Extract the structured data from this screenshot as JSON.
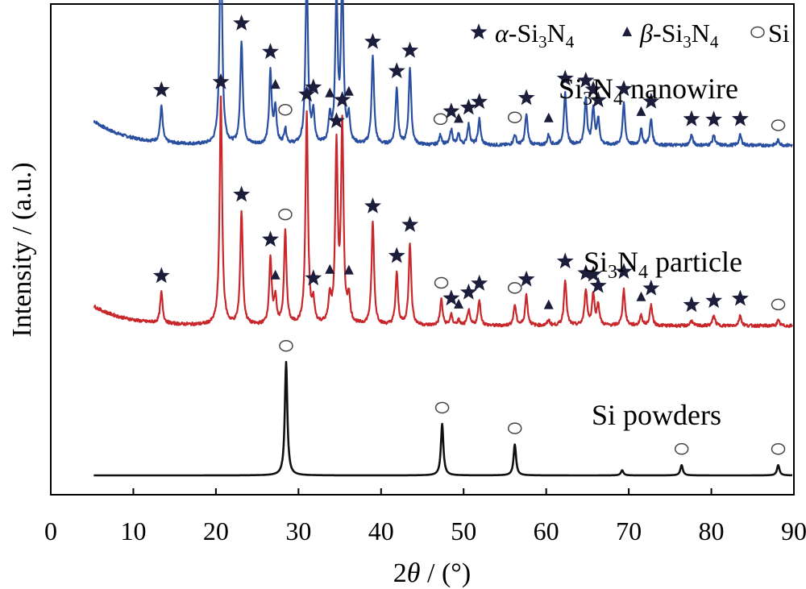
{
  "chart_data": {
    "type": "line",
    "xlabel_prefix": "2",
    "xlabel_theta": "θ",
    "xlabel_suffix": " / (°)",
    "ylabel": "Intensity / (a.u.)",
    "xlim": [
      0,
      90
    ],
    "x_ticks": [
      0,
      10,
      20,
      30,
      40,
      50,
      60,
      70,
      80,
      90
    ],
    "grid": false,
    "legend_placement": "top-right",
    "legend": [
      {
        "marker": "star",
        "greek": "α",
        "text": "-Si",
        "sub1": "3",
        "mid": "N",
        "sub2": "4"
      },
      {
        "marker": "triangle",
        "greek": "β",
        "text": "-Si",
        "sub1": "3",
        "mid": "N",
        "sub2": "4"
      },
      {
        "marker": "circle",
        "greek": "",
        "text": "Si",
        "sub1": "",
        "mid": "",
        "sub2": ""
      }
    ],
    "series": [
      {
        "name_parts": [
          "Si",
          "3",
          "N",
          "4",
          " nanowire"
        ],
        "color": "#2a4fa0",
        "offset": 0.64,
        "baseline": 0.05,
        "peaks": [
          {
            "x": 13.4,
            "h": 0.07,
            "m": "star"
          },
          {
            "x": 20.6,
            "h": 0.44,
            "m": "star"
          },
          {
            "x": 23.1,
            "h": 0.2,
            "m": "star"
          },
          {
            "x": 26.6,
            "h": 0.14,
            "m": "star"
          },
          {
            "x": 27.2,
            "h": 0.07,
            "m": "triangle"
          },
          {
            "x": 28.4,
            "h": 0.03,
            "m": "circle"
          },
          {
            "x": 31.0,
            "h": 0.34,
            "m": "star"
          },
          {
            "x": 31.8,
            "h": 0.06,
            "m": "star"
          },
          {
            "x": 33.8,
            "h": 0.05,
            "m": "triangle"
          },
          {
            "x": 34.6,
            "h": 0.28,
            "m": "star"
          },
          {
            "x": 35.3,
            "h": 0.32,
            "m": "star"
          },
          {
            "x": 36.1,
            "h": 0.05,
            "m": "triangle"
          },
          {
            "x": 39.0,
            "h": 0.17,
            "m": "star"
          },
          {
            "x": 41.9,
            "h": 0.11,
            "m": "star"
          },
          {
            "x": 43.5,
            "h": 0.15,
            "m": "star"
          },
          {
            "x": 47.2,
            "h": 0.02,
            "m": "circle"
          },
          {
            "x": 48.5,
            "h": 0.03,
            "m": "star"
          },
          {
            "x": 49.4,
            "h": 0.02,
            "m": "triangle"
          },
          {
            "x": 50.6,
            "h": 0.04,
            "m": "star"
          },
          {
            "x": 51.9,
            "h": 0.05,
            "m": "star"
          },
          {
            "x": 56.2,
            "h": 0.02,
            "m": "circle"
          },
          {
            "x": 57.6,
            "h": 0.06,
            "m": "star"
          },
          {
            "x": 60.3,
            "h": 0.02,
            "m": "triangle"
          },
          {
            "x": 62.3,
            "h": 0.1,
            "m": "star"
          },
          {
            "x": 64.8,
            "h": 0.09,
            "m": "star"
          },
          {
            "x": 65.7,
            "h": 0.07,
            "m": "star"
          },
          {
            "x": 66.3,
            "h": 0.05,
            "m": "star"
          },
          {
            "x": 69.4,
            "h": 0.08,
            "m": "star"
          },
          {
            "x": 71.5,
            "h": 0.03,
            "m": "triangle"
          },
          {
            "x": 72.7,
            "h": 0.05,
            "m": "star"
          },
          {
            "x": 77.6,
            "h": 0.02,
            "m": "star"
          },
          {
            "x": 80.3,
            "h": 0.02,
            "m": "star"
          },
          {
            "x": 83.5,
            "h": 0.02,
            "m": "star"
          },
          {
            "x": 88.1,
            "h": 0.01,
            "m": "circle"
          }
        ]
      },
      {
        "name_parts": [
          "Si",
          "3",
          "N",
          "4",
          " particle"
        ],
        "color": "#c8282b",
        "offset": 0.29,
        "baseline": 0.04,
        "peaks": [
          {
            "x": 13.4,
            "h": 0.06,
            "m": "star"
          },
          {
            "x": 20.6,
            "h": 0.44,
            "m": "star"
          },
          {
            "x": 23.1,
            "h": 0.22,
            "m": "star"
          },
          {
            "x": 26.6,
            "h": 0.13,
            "m": "star"
          },
          {
            "x": 27.2,
            "h": 0.05,
            "m": "triangle"
          },
          {
            "x": 28.4,
            "h": 0.18,
            "m": "circle"
          },
          {
            "x": 31.0,
            "h": 0.41,
            "m": "star"
          },
          {
            "x": 31.8,
            "h": 0.04,
            "m": "star"
          },
          {
            "x": 33.8,
            "h": 0.05,
            "m": "triangle"
          },
          {
            "x": 34.6,
            "h": 0.34,
            "m": "star"
          },
          {
            "x": 35.3,
            "h": 0.38,
            "m": "star"
          },
          {
            "x": 36.1,
            "h": 0.05,
            "m": "triangle"
          },
          {
            "x": 39.0,
            "h": 0.2,
            "m": "star"
          },
          {
            "x": 41.9,
            "h": 0.1,
            "m": "star"
          },
          {
            "x": 43.5,
            "h": 0.16,
            "m": "star"
          },
          {
            "x": 47.3,
            "h": 0.05,
            "m": "circle"
          },
          {
            "x": 48.5,
            "h": 0.02,
            "m": "star"
          },
          {
            "x": 49.4,
            "h": 0.01,
            "m": "triangle"
          },
          {
            "x": 50.6,
            "h": 0.03,
            "m": "star"
          },
          {
            "x": 51.9,
            "h": 0.05,
            "m": "star"
          },
          {
            "x": 56.2,
            "h": 0.04,
            "m": "circle"
          },
          {
            "x": 57.6,
            "h": 0.06,
            "m": "star"
          },
          {
            "x": 60.3,
            "h": 0.01,
            "m": "triangle"
          },
          {
            "x": 62.3,
            "h": 0.09,
            "m": "star"
          },
          {
            "x": 64.8,
            "h": 0.07,
            "m": "star"
          },
          {
            "x": 65.7,
            "h": 0.06,
            "m": "star"
          },
          {
            "x": 66.3,
            "h": 0.04,
            "m": "star"
          },
          {
            "x": 69.4,
            "h": 0.07,
            "m": "star"
          },
          {
            "x": 71.5,
            "h": 0.02,
            "m": "triangle"
          },
          {
            "x": 72.7,
            "h": 0.04,
            "m": "star"
          },
          {
            "x": 77.6,
            "h": 0.01,
            "m": "star"
          },
          {
            "x": 80.3,
            "h": 0.02,
            "m": "star"
          },
          {
            "x": 83.5,
            "h": 0.02,
            "m": "star"
          },
          {
            "x": 88.1,
            "h": 0.01,
            "m": "circle"
          }
        ]
      },
      {
        "name_parts": [
          "Si powders",
          "",
          "",
          "",
          ""
        ],
        "color": "#111111",
        "offset": 0.0,
        "baseline": 0.0,
        "peaks": [
          {
            "x": 28.5,
            "h": 0.22,
            "m": "circle"
          },
          {
            "x": 47.4,
            "h": 0.1,
            "m": "circle"
          },
          {
            "x": 56.2,
            "h": 0.06,
            "m": "circle"
          },
          {
            "x": 69.2,
            "h": 0.01,
            "m": ""
          },
          {
            "x": 76.4,
            "h": 0.02,
            "m": "circle"
          },
          {
            "x": 88.1,
            "h": 0.02,
            "m": "circle"
          }
        ]
      }
    ]
  }
}
